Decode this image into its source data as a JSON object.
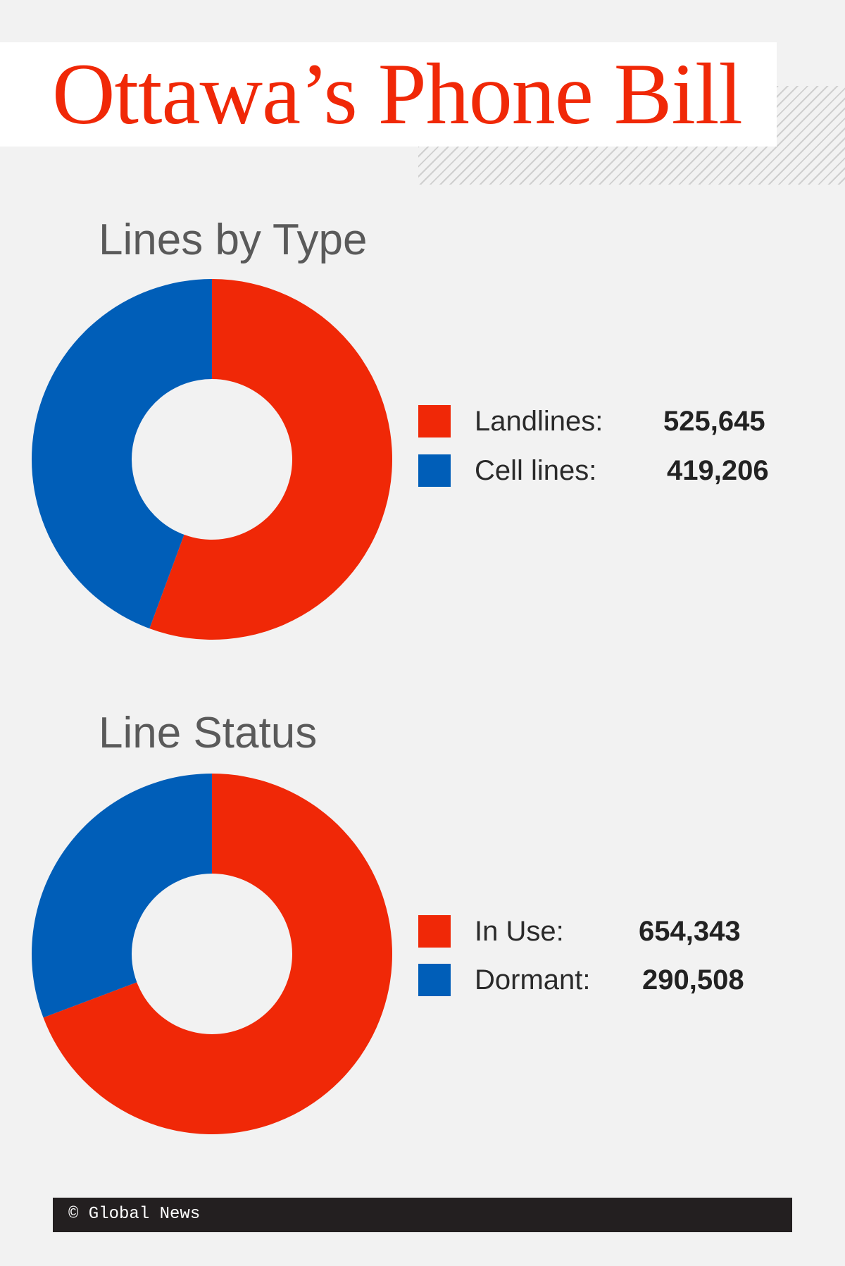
{
  "title": "Ottawa’s Phone Bill",
  "colors": {
    "red": "#f02807",
    "blue": "#005eb8",
    "title": "#f02807"
  },
  "chart_data": [
    {
      "type": "pie",
      "title": "Lines by Type",
      "legend_position": "right",
      "categories": [
        "Landlines:",
        "Cell lines:"
      ],
      "values": [
        525645,
        419206
      ],
      "value_labels": [
        "525,645",
        "419,206"
      ],
      "colors": [
        "#f02807",
        "#005eb8"
      ]
    },
    {
      "type": "pie",
      "title": "Line Status",
      "legend_position": "right",
      "categories": [
        "In Use:",
        "Dormant:"
      ],
      "values": [
        654343,
        290508
      ],
      "value_labels": [
        "654,343",
        "290,508"
      ],
      "colors": [
        "#f02807",
        "#005eb8"
      ]
    }
  ],
  "footer": {
    "credit": "© Global News"
  }
}
